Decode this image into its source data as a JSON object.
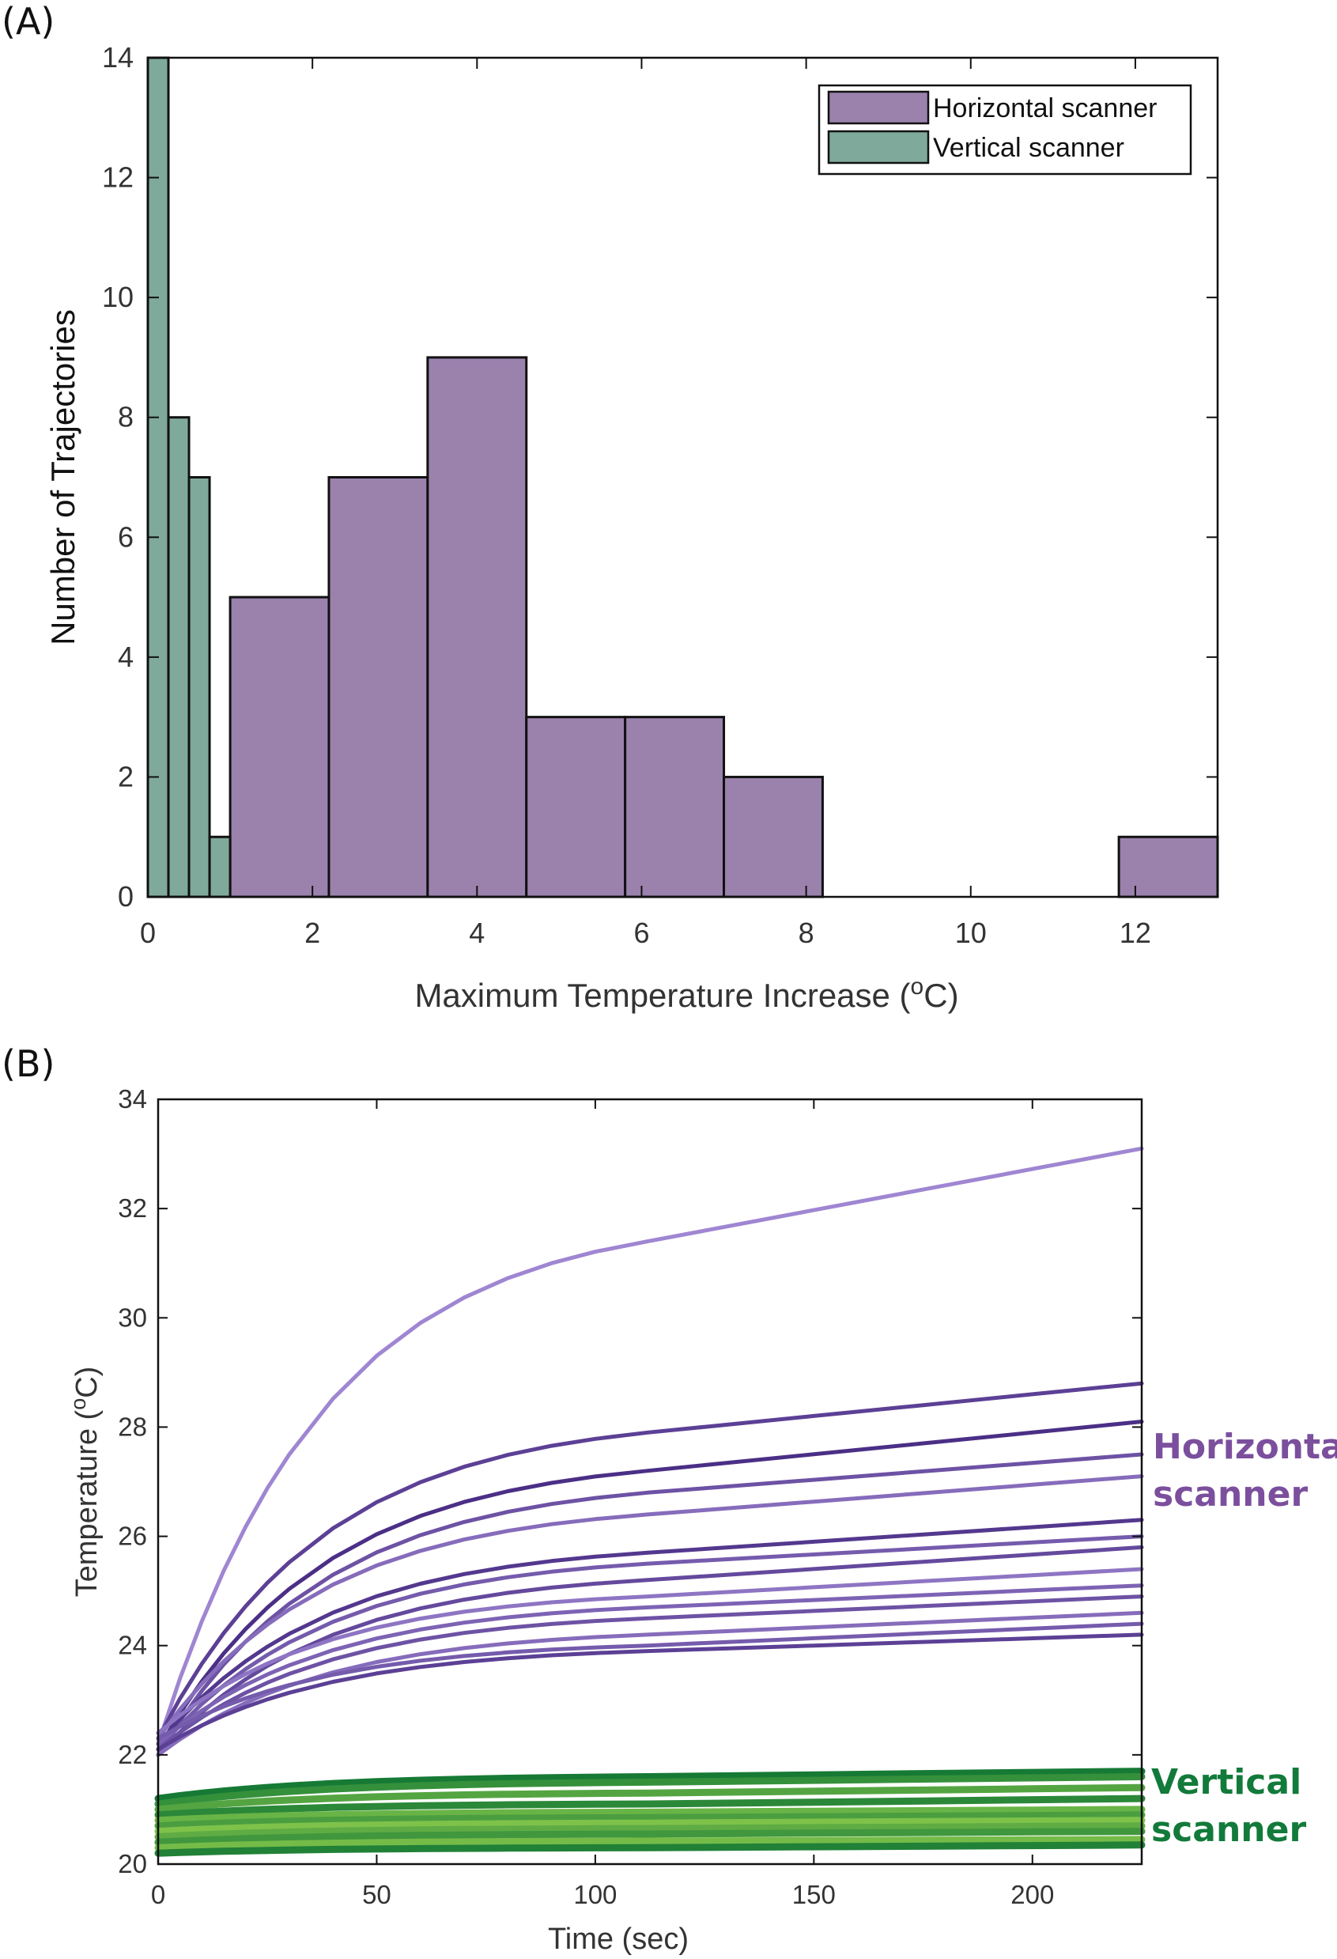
{
  "panels": {
    "a_label": "(A)",
    "b_label": "(B)"
  },
  "colors": {
    "horizontal": "#9a82ad",
    "vertical": "#7fa99b",
    "horizontal_line_light": "#9f86d2",
    "horizontal_line_dark": "#4b2f86",
    "vertical_line_light": "#7ec24a",
    "vertical_line_dark": "#167a35",
    "horizontal_text": "#7b4f9d",
    "vertical_text": "#127a3a"
  },
  "chart_data": [
    {
      "type": "bar",
      "title": "",
      "xlabel": "Maximum Temperature Increase (",
      "xlabel_sup": "o",
      "xlabel_tail": "C)",
      "ylabel": "Number of Trajectories",
      "xlim": [
        0,
        13
      ],
      "ylim": [
        0,
        14
      ],
      "xticks": [
        "0",
        "2",
        "4",
        "6",
        "8",
        "10",
        "12"
      ],
      "yticks": [
        "0",
        "2",
        "4",
        "6",
        "8",
        "10",
        "12",
        "14"
      ],
      "legend": [
        "Horizontal scanner",
        "Vertical scanner"
      ],
      "legend_position": "top-right",
      "series": [
        {
          "name": "Horizontal scanner",
          "bins": [
            {
              "x0": 1.0,
              "x1": 2.2,
              "count": 5
            },
            {
              "x0": 2.2,
              "x1": 3.4,
              "count": 7
            },
            {
              "x0": 3.4,
              "x1": 4.6,
              "count": 9
            },
            {
              "x0": 4.6,
              "x1": 5.8,
              "count": 3
            },
            {
              "x0": 5.8,
              "x1": 7.0,
              "count": 3
            },
            {
              "x0": 7.0,
              "x1": 8.2,
              "count": 2
            },
            {
              "x0": 8.2,
              "x1": 9.4,
              "count": 0
            },
            {
              "x0": 9.4,
              "x1": 10.6,
              "count": 0
            },
            {
              "x0": 10.6,
              "x1": 11.8,
              "count": 0
            },
            {
              "x0": 11.8,
              "x1": 13.0,
              "count": 1
            }
          ]
        },
        {
          "name": "Vertical scanner",
          "bins": [
            {
              "x0": 0.0,
              "x1": 0.25,
              "count": 14
            },
            {
              "x0": 0.25,
              "x1": 0.5,
              "count": 8
            },
            {
              "x0": 0.5,
              "x1": 0.75,
              "count": 7
            },
            {
              "x0": 0.75,
              "x1": 1.0,
              "count": 1
            }
          ]
        }
      ]
    },
    {
      "type": "line",
      "title": "",
      "xlabel": "Time (sec)",
      "ylabel": "Temperature (",
      "ylabel_sup": "o",
      "ylabel_tail": "C)",
      "xlim": [
        0,
        225
      ],
      "ylim": [
        20,
        34
      ],
      "xticks": [
        "0",
        "50",
        "100",
        "150",
        "200"
      ],
      "yticks": [
        "20",
        "22",
        "24",
        "26",
        "28",
        "30",
        "32",
        "34"
      ],
      "x": [
        0,
        5,
        10,
        15,
        20,
        25,
        30,
        40,
        50,
        60,
        70,
        80,
        90,
        100,
        112,
        125,
        150,
        175,
        200,
        225
      ],
      "group_labels": {
        "horizontal": [
          "Horizontal",
          "scanner"
        ],
        "vertical": [
          "Vertical",
          "scanner"
        ]
      },
      "series": [
        {
          "name": "Horizontal scanner",
          "start": 22.2,
          "final": 33.1,
          "knee": 31.4,
          "shade": 0.0
        },
        {
          "name": "Horizontal scanner",
          "start": 22.3,
          "final": 28.8,
          "knee": 27.9,
          "shade": 0.8
        },
        {
          "name": "Horizontal scanner",
          "start": 22.1,
          "final": 28.1,
          "knee": 27.2,
          "shade": 1.0
        },
        {
          "name": "Horizontal scanner",
          "start": 22.0,
          "final": 27.5,
          "knee": 26.8,
          "shade": 0.6
        },
        {
          "name": "Horizontal scanner",
          "start": 22.3,
          "final": 27.1,
          "knee": 26.4,
          "shade": 0.3
        },
        {
          "name": "Horizontal scanner",
          "start": 22.2,
          "final": 26.3,
          "knee": 25.7,
          "shade": 0.9
        },
        {
          "name": "Horizontal scanner",
          "start": 22.1,
          "final": 26.0,
          "knee": 25.5,
          "shade": 0.5
        },
        {
          "name": "Horizontal scanner",
          "start": 22.0,
          "final": 25.8,
          "knee": 25.2,
          "shade": 0.7
        },
        {
          "name": "Horizontal scanner",
          "start": 22.4,
          "final": 25.4,
          "knee": 24.9,
          "shade": 0.2
        },
        {
          "name": "Horizontal scanner",
          "start": 22.2,
          "final": 25.1,
          "knee": 24.7,
          "shade": 0.4
        },
        {
          "name": "Horizontal scanner",
          "start": 22.1,
          "final": 24.9,
          "knee": 24.5,
          "shade": 0.6
        },
        {
          "name": "Horizontal scanner",
          "start": 22.0,
          "final": 24.6,
          "knee": 24.2,
          "shade": 0.3
        },
        {
          "name": "Horizontal scanner",
          "start": 22.3,
          "final": 24.4,
          "knee": 24.0,
          "shade": 0.5
        },
        {
          "name": "Horizontal scanner",
          "start": 22.1,
          "final": 24.2,
          "knee": 23.9,
          "shade": 0.8
        },
        {
          "name": "Vertical scanner",
          "start": 21.2,
          "final": 21.7,
          "knee": 21.6,
          "shade": 1.0
        },
        {
          "name": "Vertical scanner",
          "start": 21.1,
          "final": 21.6,
          "knee": 21.5,
          "shade": 0.7
        },
        {
          "name": "Vertical scanner",
          "start": 21.0,
          "final": 21.4,
          "knee": 21.3,
          "shade": 0.4
        },
        {
          "name": "Vertical scanner",
          "start": 20.9,
          "final": 21.2,
          "knee": 21.1,
          "shade": 0.8
        },
        {
          "name": "Vertical scanner",
          "start": 20.8,
          "final": 21.0,
          "knee": 20.95,
          "shade": 0.2
        },
        {
          "name": "Vertical scanner",
          "start": 20.7,
          "final": 20.9,
          "knee": 20.85,
          "shade": 0.5
        },
        {
          "name": "Vertical scanner",
          "start": 20.6,
          "final": 20.8,
          "knee": 20.75,
          "shade": 0.0
        },
        {
          "name": "Vertical scanner",
          "start": 20.5,
          "final": 20.7,
          "knee": 20.65,
          "shade": 0.3
        },
        {
          "name": "Vertical scanner",
          "start": 20.4,
          "final": 20.6,
          "knee": 20.55,
          "shade": 0.6
        },
        {
          "name": "Vertical scanner",
          "start": 20.3,
          "final": 20.45,
          "knee": 20.42,
          "shade": 0.1
        },
        {
          "name": "Vertical scanner",
          "start": 20.2,
          "final": 20.35,
          "knee": 20.3,
          "shade": 0.9
        }
      ]
    }
  ]
}
